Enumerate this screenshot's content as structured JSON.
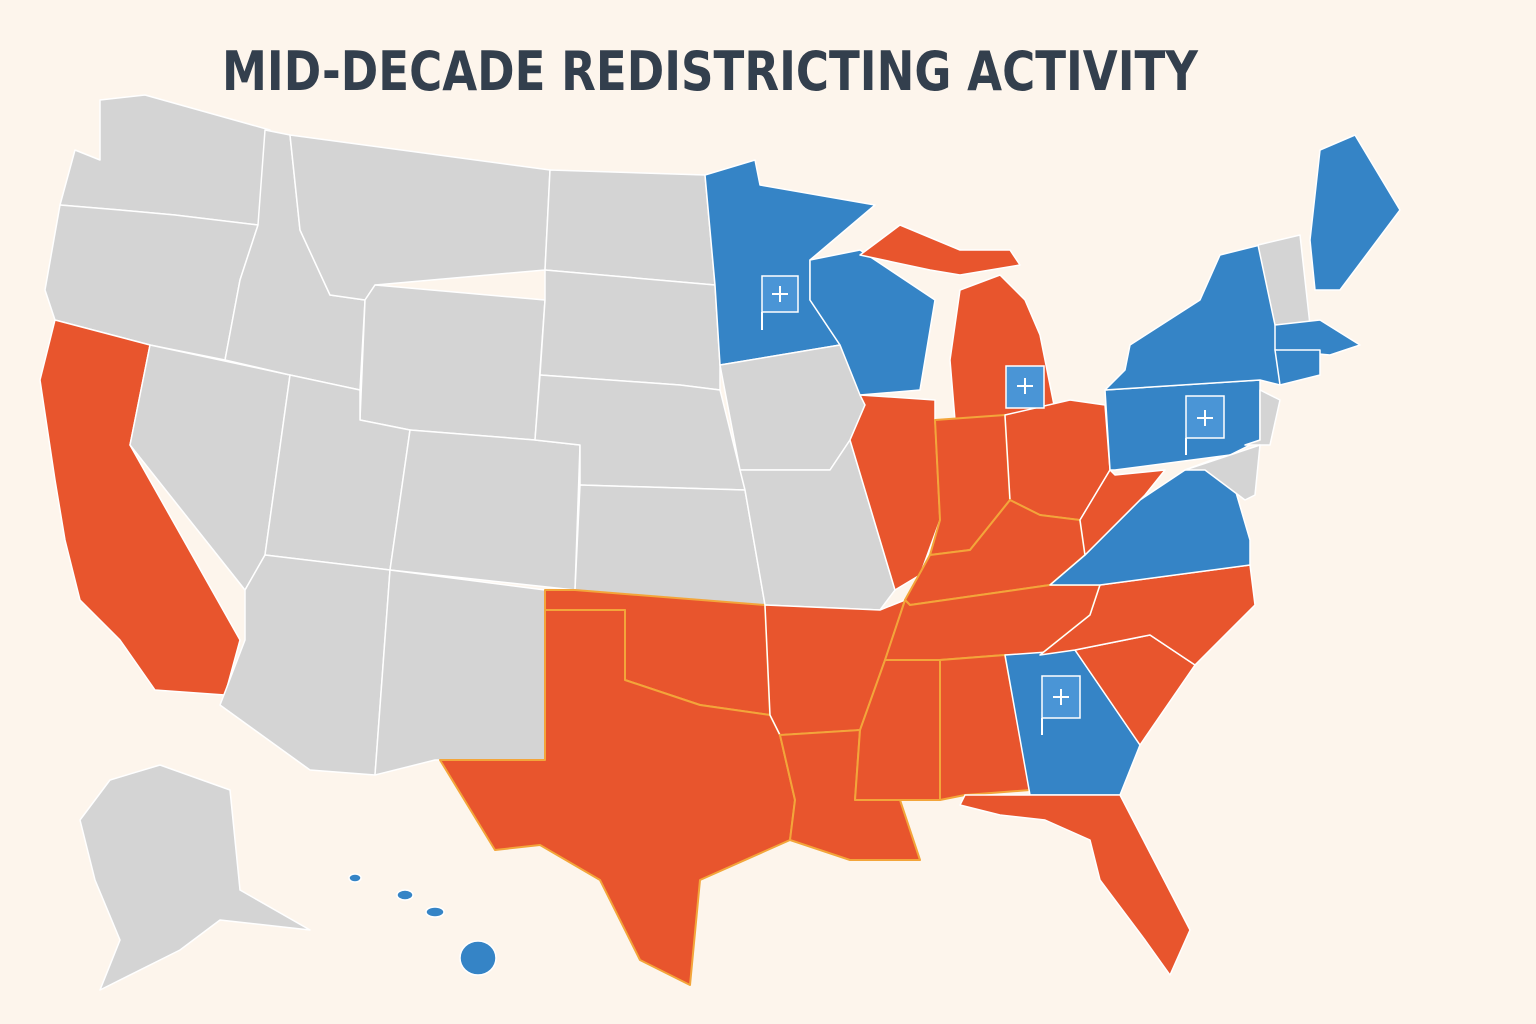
{
  "header": {
    "title": "MID-DECADE REDISTRICTING ACTIVITY"
  }
}
